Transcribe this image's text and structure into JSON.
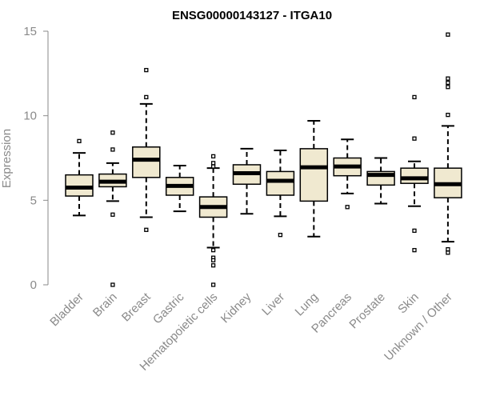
{
  "chart_data": {
    "type": "boxplot",
    "title": "ENSG00000143127 - ITGA10",
    "ylabel": "Expression",
    "xlabel": "",
    "ylim": [
      0,
      15
    ],
    "yticks": [
      0,
      5,
      10,
      15
    ],
    "grid": false,
    "categories": [
      "Bladder",
      "Brain",
      "Breast",
      "Gastric",
      "Hematopoietic cells",
      "Kidney",
      "Liver",
      "Lung",
      "Pancreas",
      "Prostate",
      "Skin",
      "Unknown / Other"
    ],
    "boxes": [
      {
        "min": 4.1,
        "q1": 5.25,
        "median": 5.75,
        "q3": 6.5,
        "max": 7.8,
        "outliers": [
          8.5
        ]
      },
      {
        "min": 4.95,
        "q1": 5.8,
        "median": 6.1,
        "q3": 6.55,
        "max": 7.2,
        "outliers": [
          9.0,
          8.0,
          4.15,
          0.0
        ]
      },
      {
        "min": 4.0,
        "q1": 6.35,
        "median": 7.4,
        "q3": 8.15,
        "max": 10.7,
        "outliers": [
          12.7,
          11.1,
          3.25
        ]
      },
      {
        "min": 4.35,
        "q1": 5.3,
        "median": 5.85,
        "q3": 6.35,
        "max": 7.05,
        "outliers": []
      },
      {
        "min": 2.2,
        "q1": 4.0,
        "median": 4.6,
        "q3": 5.2,
        "max": 6.9,
        "outliers": [
          7.6,
          7.2,
          7.0,
          2.05,
          1.6,
          1.45,
          1.15,
          0.0
        ]
      },
      {
        "min": 4.2,
        "q1": 5.95,
        "median": 6.6,
        "q3": 7.1,
        "max": 8.05,
        "outliers": []
      },
      {
        "min": 4.05,
        "q1": 5.3,
        "median": 6.15,
        "q3": 6.7,
        "max": 7.95,
        "outliers": [
          2.95
        ]
      },
      {
        "min": 2.85,
        "q1": 4.95,
        "median": 6.95,
        "q3": 8.05,
        "max": 9.7,
        "outliers": []
      },
      {
        "min": 5.4,
        "q1": 6.45,
        "median": 7.0,
        "q3": 7.5,
        "max": 8.6,
        "outliers": [
          4.6
        ]
      },
      {
        "min": 4.8,
        "q1": 5.9,
        "median": 6.5,
        "q3": 6.7,
        "max": 7.5,
        "outliers": []
      },
      {
        "min": 4.65,
        "q1": 6.0,
        "median": 6.3,
        "q3": 6.9,
        "max": 7.3,
        "outliers": [
          11.1,
          8.65,
          3.2,
          2.05
        ]
      },
      {
        "min": 2.55,
        "q1": 5.15,
        "median": 5.95,
        "q3": 6.9,
        "max": 9.4,
        "outliers": [
          14.8,
          12.2,
          11.95,
          11.7,
          10.05,
          2.1,
          1.9
        ]
      }
    ]
  },
  "colors": {
    "box_fill": "#f0e9d0",
    "box_stroke": "#000000",
    "median": "#000000",
    "axis": "#8a8a8a",
    "label": "#8a8a8a",
    "title": "#000000"
  }
}
